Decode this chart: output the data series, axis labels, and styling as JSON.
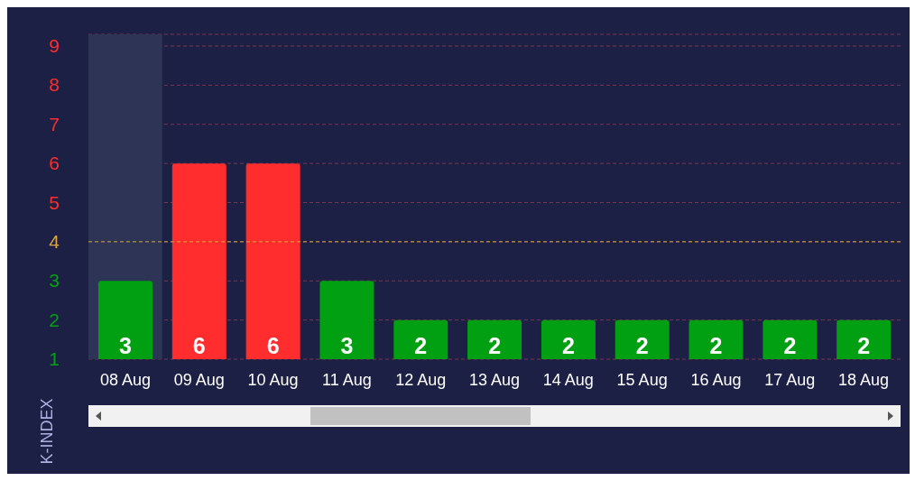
{
  "chart_data": {
    "type": "bar",
    "ylabel": "K-INDEX",
    "categories": [
      "08 Aug",
      "09 Aug",
      "10 Aug",
      "11 Aug",
      "12 Aug",
      "13 Aug",
      "14 Aug",
      "15 Aug",
      "16 Aug",
      "17 Aug",
      "18 Aug"
    ],
    "values": [
      3,
      6,
      6,
      3,
      2,
      2,
      2,
      2,
      2,
      2,
      2
    ],
    "colors": [
      "#00a012",
      "#ff2d2d",
      "#ff2d2d",
      "#00a012",
      "#00a012",
      "#00a012",
      "#00a012",
      "#00a012",
      "#00a012",
      "#00a012",
      "#00a012"
    ],
    "ylim": [
      1,
      9.3
    ],
    "yticks": [
      1,
      2,
      3,
      4,
      5,
      6,
      7,
      8,
      9
    ],
    "grid": "y",
    "data_labels": true,
    "ref_lines": [
      {
        "axis": "y",
        "value": 4,
        "color": "#d9a63a",
        "line_style": "dashed"
      }
    ],
    "bands": [
      {
        "axis": "x",
        "from": "08 Aug",
        "to": "08 Aug",
        "color": "#2e3456"
      }
    ]
  }
}
